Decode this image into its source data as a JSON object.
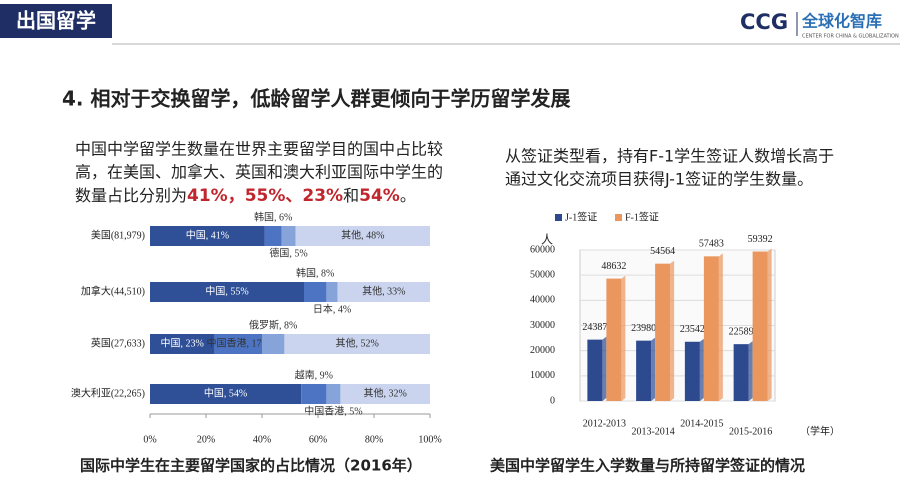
{
  "header": {
    "section": "出国留学",
    "logo": "CCG",
    "logo_cn": "全球化智库",
    "logo_en": "CENTER FOR CHINA & GLOBALIZATION"
  },
  "heading": "4. 相对于交换留学，低龄留学人群更倾向于学历留学发展",
  "left_text": {
    "lines": [
      "中国中学留学生数量在世界主要留学目的国中占比较",
      "高，在美国、加拿大、英国和澳大利亚国际中学生的"
    ],
    "last_line": [
      {
        "text": "数量占比分别为"
      },
      {
        "text": "41%，55%、23%",
        "highlight": true
      },
      {
        "text": "和"
      },
      {
        "text": "54%",
        "highlight": true
      },
      {
        "text": "。"
      }
    ]
  },
  "right_text": {
    "lines": [
      "从签证类型看，持有F-1学生签证人数增长高于",
      "通过文化交流项目获得J-1签证的学生数量。"
    ]
  },
  "chart_data": [
    {
      "type": "stacked-hbar",
      "caption": "国际中学生在主要留学国家的占比情况（2016年）",
      "colors": [
        "#2f4f96",
        "#4d74c2",
        "#86a3da",
        "#cad4ee"
      ],
      "xlim": [
        0,
        100
      ],
      "xticks": [
        {
          "value": 0,
          "label": "0%"
        },
        {
          "value": 20,
          "label": "20%"
        },
        {
          "value": 40,
          "label": "40%"
        },
        {
          "value": 60,
          "label": "60%"
        },
        {
          "value": 80,
          "label": "80%"
        },
        {
          "value": 100,
          "label": "100%"
        }
      ],
      "bars": [
        {
          "category": "美国(81,979)",
          "segments": [
            {
              "value": 41,
              "label": "中国, 41%"
            },
            {
              "value": 6,
              "label": "韩国, 6%"
            },
            {
              "value": 5,
              "label": "德国, 5%"
            },
            {
              "value": 48,
              "label": "其他, 48%"
            }
          ]
        },
        {
          "category": "加拿大(44,510)",
          "segments": [
            {
              "value": 55,
              "label": "中国, 55%"
            },
            {
              "value": 8,
              "label": "韩国, 8%"
            },
            {
              "value": 4,
              "label": "日本, 4%"
            },
            {
              "value": 33,
              "label": "其他, 33%"
            }
          ]
        },
        {
          "category": "英国(27,633)",
          "segments": [
            {
              "value": 23,
              "label": "中国, 23%"
            },
            {
              "value": 17,
              "label": "中国香港, 17%"
            },
            {
              "value": 8,
              "label": "俄罗斯, 8%"
            },
            {
              "value": 52,
              "label": "其他, 52%"
            }
          ]
        },
        {
          "category": "澳大利亚(22,265)",
          "segments": [
            {
              "value": 54,
              "label": "中国, 54%"
            },
            {
              "value": 9,
              "label": "越南, 9%"
            },
            {
              "value": 5,
              "label": "中国香港, 5%"
            },
            {
              "value": 32,
              "label": "其他, 32%"
            }
          ]
        }
      ]
    },
    {
      "type": "bar",
      "caption": "美国中学留学生入学数量与所持留学签证的情况",
      "ylabel": "人",
      "xlabel": "（学年）",
      "grid": true,
      "categories": [
        "2012-2013",
        "2013-2014",
        "2014-2015",
        "2015-2016"
      ],
      "series": [
        {
          "name": "J-1签证",
          "color": "#2e4a8f",
          "values": [
            24387,
            23980,
            23542,
            22589
          ]
        },
        {
          "name": "F-1签证",
          "color": "#ea965c",
          "values": [
            48632,
            54564,
            57483,
            59392
          ]
        }
      ],
      "ylim": [
        0,
        60000
      ],
      "yticks": [
        0,
        10000,
        20000,
        30000,
        40000,
        50000,
        60000
      ]
    }
  ]
}
